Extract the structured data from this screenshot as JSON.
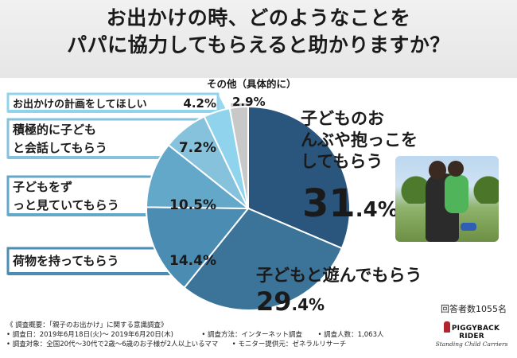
{
  "title": "お出かけの時、どのようなことを\nパパに協力してもらえると助かりますか？",
  "respondents_note": "回答者数1055名",
  "footer": {
    "survey_overview": "《 調査概要：「親子のお出かけ」に関する意識調査》",
    "period": "• 調査日：2019年6月18日(火)～ 2019年6月20日(木)",
    "method": "• 調査方法：インターネット調査",
    "count": "• 調査人数：1,063人",
    "target": "• 調査対象：全国20代～30代で2歳～6歳のお子様が2人以上いるママ",
    "provider": "• モニター提供元：ゼネラルリサーチ"
  },
  "brand": {
    "name": "PIGGYBACK RIDER",
    "tagline": "Standing Child Carriers"
  },
  "chart_data": {
    "type": "pie",
    "title": "お出かけの時、どのようなことを\nパパに協力してもらえると助かりますか？",
    "unit": "%",
    "slices": [
      {
        "label": "子どものおんぶや抱っこをしてもらう",
        "value": 31.4,
        "value_text": "31.4%",
        "color": "#2a557d"
      },
      {
        "label": "子どもと遊んでもらう",
        "value": 29.4,
        "value_text": "29.4%",
        "color": "#3c7399"
      },
      {
        "label": "荷物を持ってもらう",
        "value": 14.4,
        "value_text": "14.4%",
        "color": "#4b8cb3"
      },
      {
        "label": "子どもをずっと見ていてもらう",
        "value": 10.5,
        "value_text": "10.5%",
        "color": "#63a7c9"
      },
      {
        "label": "積極的に子どもと会話してもらう",
        "value": 7.2,
        "value_text": "7.2%",
        "color": "#86c2dc"
      },
      {
        "label": "お出かけの計画をしてほしい",
        "value": 4.2,
        "value_text": "4.2%",
        "color": "#8fd4ec"
      },
      {
        "label": "その他（具体的に）",
        "value": 2.9,
        "value_text": "2.9%",
        "color": "#c8c8c8"
      }
    ]
  }
}
